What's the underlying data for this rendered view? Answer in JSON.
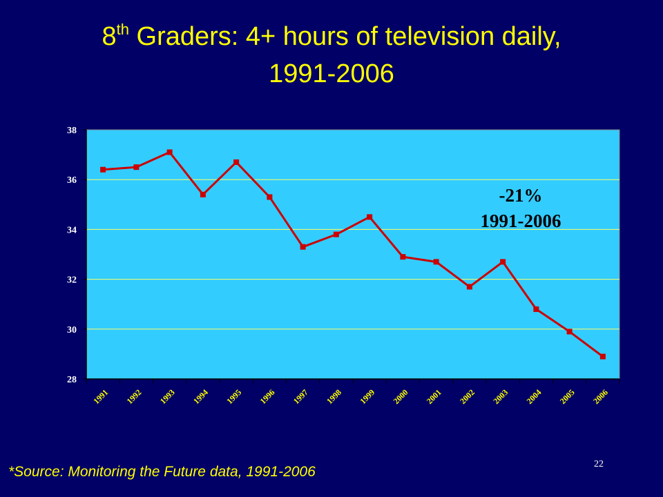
{
  "slide": {
    "title_ordinal": "8",
    "title_superscript": "th",
    "title_line1_rest": " Graders: 4+ hours of television daily,",
    "title_line2": "1991-2006",
    "source": "*Source: Monitoring the Future data, 1991-2006",
    "page_number": "22"
  },
  "colors": {
    "background": "#000066",
    "title": "#FFFF00",
    "plot_area": "#33CCFF",
    "gridline": "#FFFF66",
    "series": "#CC0000",
    "axis_labels_x": "#FFFF00",
    "axis_labels_y": "#FFFFFF",
    "annotation": "#000000"
  },
  "chart_data": {
    "type": "line",
    "title": "",
    "xlabel": "",
    "ylabel": "",
    "categories": [
      "1991",
      "1992",
      "1993",
      "1994",
      "1995",
      "1996",
      "1997",
      "1998",
      "1999",
      "2000",
      "2001",
      "2002",
      "2003",
      "2004",
      "2005",
      "2006"
    ],
    "series": [
      {
        "values": [
          36.4,
          36.5,
          37.1,
          35.4,
          36.7,
          35.3,
          33.3,
          33.8,
          34.5,
          32.9,
          32.7,
          31.7,
          32.7,
          30.8,
          29.9,
          28.9
        ]
      }
    ],
    "ylim": [
      28,
      38
    ],
    "yticks": [
      "28",
      "30",
      "32",
      "34",
      "36",
      "38"
    ],
    "grid": true,
    "annotation": {
      "line1": "-21%",
      "line2": "1991-2006"
    }
  }
}
